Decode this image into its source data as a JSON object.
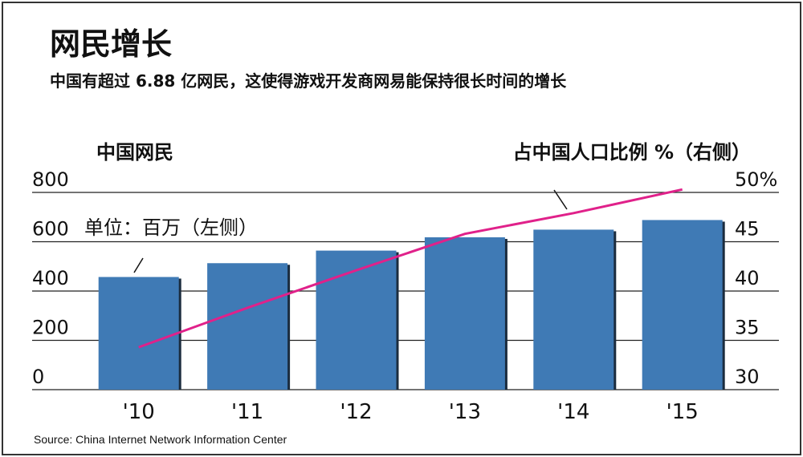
{
  "chart_data": {
    "type": "bar_line",
    "title": "网民增长",
    "subtitle": "中国有超过 6.88 亿网民，这使得游戏开发商网易能保持很长时间的增长",
    "y_axis_label": "中国网民",
    "y2_axis_label": "占中国人口比例 %（右侧）",
    "unit_note": "单位：百万（左侧）",
    "source": "Source: China Internet Network Information Center",
    "categories": [
      "'10",
      "'11",
      "'12",
      "'13",
      "'14",
      "'15"
    ],
    "series": [
      {
        "name": "中国网民",
        "type": "bar",
        "color": "#3f7ab5",
        "values": [
          457,
          513,
          564,
          618,
          649,
          688
        ]
      },
      {
        "name": "占中国人口比例 %（右侧）",
        "type": "line",
        "axis": "y2",
        "color": "#e0218a",
        "values": [
          34.3,
          38.3,
          42.1,
          45.8,
          47.9,
          50.3
        ]
      }
    ],
    "ylim": [
      0,
      800
    ],
    "yticks": [
      0,
      200,
      400,
      600,
      800
    ],
    "y2lim": [
      30,
      50
    ],
    "y2ticks": [
      30,
      35,
      40,
      45,
      {
        "value": 50,
        "label": "50%"
      }
    ],
    "grid": true
  }
}
